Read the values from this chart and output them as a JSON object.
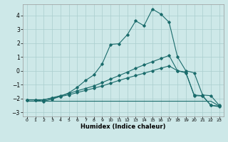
{
  "xlabel": "Humidex (Indice chaleur)",
  "bg_color": "#cde8e8",
  "line_color": "#1a6b6b",
  "grid_color": "#aacece",
  "xlim": [
    -0.5,
    23.5
  ],
  "ylim": [
    -3.3,
    4.8
  ],
  "xticks": [
    0,
    1,
    2,
    3,
    4,
    5,
    6,
    7,
    8,
    9,
    10,
    11,
    12,
    13,
    14,
    15,
    16,
    17,
    18,
    19,
    20,
    21,
    22,
    23
  ],
  "yticks": [
    -3,
    -2,
    -1,
    0,
    1,
    2,
    3,
    4
  ],
  "line1_x": [
    0,
    1,
    2,
    3,
    4,
    5,
    6,
    7,
    8,
    9,
    10,
    11,
    12,
    13,
    14,
    15,
    16,
    17,
    18,
    19,
    20,
    21,
    22,
    23
  ],
  "line1_y": [
    -2.1,
    -2.1,
    -2.2,
    -2.05,
    -1.85,
    -1.6,
    -1.2,
    -0.7,
    -0.3,
    0.5,
    1.9,
    1.95,
    2.6,
    3.6,
    3.25,
    4.45,
    4.1,
    3.5,
    1.0,
    0.0,
    -0.15,
    -1.75,
    -1.8,
    -2.5
  ],
  "line2_x": [
    0,
    1,
    2,
    3,
    4,
    5,
    6,
    7,
    8,
    9,
    10,
    11,
    12,
    13,
    14,
    15,
    16,
    17,
    18,
    19,
    20,
    21,
    22,
    23
  ],
  "line2_y": [
    -2.1,
    -2.1,
    -2.1,
    -1.95,
    -1.8,
    -1.65,
    -1.45,
    -1.28,
    -1.1,
    -0.85,
    -0.6,
    -0.35,
    -0.1,
    0.18,
    0.42,
    0.65,
    0.88,
    1.1,
    0.0,
    -0.15,
    -1.75,
    -1.8,
    -2.5,
    -2.55
  ],
  "line3_x": [
    0,
    1,
    2,
    3,
    4,
    5,
    6,
    7,
    8,
    9,
    10,
    11,
    12,
    13,
    14,
    15,
    16,
    17,
    18,
    19,
    20,
    21,
    22,
    23
  ],
  "line3_y": [
    -2.1,
    -2.1,
    -2.1,
    -1.98,
    -1.86,
    -1.74,
    -1.58,
    -1.42,
    -1.26,
    -1.1,
    -0.9,
    -0.7,
    -0.52,
    -0.35,
    -0.18,
    0.0,
    0.18,
    0.35,
    0.0,
    -0.1,
    -1.8,
    -1.82,
    -2.5,
    -2.6
  ],
  "line4_x": [
    0,
    1,
    2,
    3,
    4,
    5,
    6,
    7,
    8,
    9,
    10,
    11,
    12,
    13,
    14,
    15,
    16,
    17,
    18,
    19,
    20,
    21,
    22,
    23
  ],
  "line4_y": [
    -2.2,
    -2.2,
    -2.2,
    -2.2,
    -2.2,
    -2.2,
    -2.2,
    -2.2,
    -2.2,
    -2.2,
    -2.2,
    -2.2,
    -2.2,
    -2.2,
    -2.2,
    -2.2,
    -2.2,
    -2.2,
    -2.2,
    -2.2,
    -2.2,
    -2.2,
    -2.2,
    -2.55
  ]
}
